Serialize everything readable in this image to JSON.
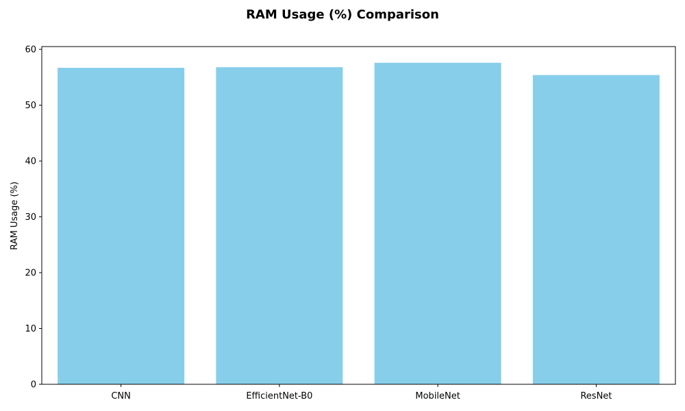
{
  "chart_data": {
    "type": "bar",
    "title": "RAM Usage (%) Comparison",
    "xlabel": "",
    "ylabel": "RAM Usage (%)",
    "categories": [
      "CNN",
      "EfficientNet-B0",
      "MobileNet",
      "ResNet"
    ],
    "values": [
      56.7,
      56.8,
      57.6,
      55.4
    ],
    "ylim": [
      0,
      60.5
    ],
    "yticks": [
      0,
      10,
      20,
      30,
      40,
      50,
      60
    ],
    "ytick_labels": [
      "0",
      "10",
      "20",
      "30",
      "40",
      "50",
      "60"
    ],
    "grid": false,
    "bar_color": "#87CEEB",
    "axis_color": "#000000"
  }
}
